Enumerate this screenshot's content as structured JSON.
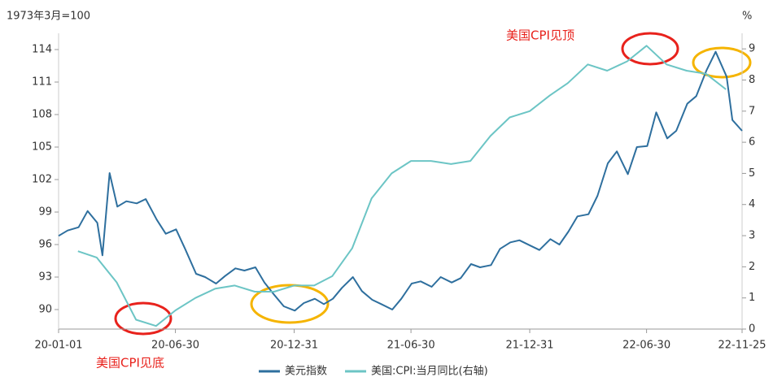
{
  "chart_data": {
    "type": "line",
    "y_axis_label": "1973年3月=100",
    "y2_axis_label": "%",
    "annotations": [
      "美国CPI见顶",
      "美国CPI见底"
    ],
    "xlim": [
      "20-01-01",
      "22-11-25"
    ],
    "xticks": [
      "20-01-01",
      "20-06-30",
      "20-12-31",
      "21-06-30",
      "21-12-31",
      "22-06-30",
      "22-11-25"
    ],
    "ylim": [
      88.2,
      115.5
    ],
    "yticks": [
      90,
      93,
      96,
      99,
      102,
      105,
      108,
      111,
      114
    ],
    "y2lim": [
      0,
      9.5
    ],
    "y2ticks": [
      0,
      1,
      2,
      3,
      4,
      5,
      6,
      7,
      8,
      9
    ],
    "grid": false,
    "legend": "bottom",
    "series": [
      {
        "name": "美元指数",
        "color": "#2e6f9e",
        "x": [
          "20-01-01",
          "20-01-15",
          "20-02-01",
          "20-02-15",
          "20-03-01",
          "20-03-09",
          "20-03-20",
          "20-04-01",
          "20-04-15",
          "20-05-01",
          "20-05-15",
          "20-06-01",
          "20-06-15",
          "20-07-01",
          "20-07-15",
          "20-08-01",
          "20-08-15",
          "20-09-01",
          "20-09-15",
          "20-10-01",
          "20-10-15",
          "20-11-01",
          "20-11-15",
          "20-12-01",
          "20-12-15",
          "21-01-01",
          "21-01-15",
          "21-02-01",
          "21-02-15",
          "21-03-01",
          "21-03-15",
          "21-04-01",
          "21-04-15",
          "21-05-01",
          "21-05-15",
          "21-06-01",
          "21-06-15",
          "21-07-01",
          "21-07-15",
          "21-08-01",
          "21-08-15",
          "21-09-01",
          "21-09-15",
          "21-10-01",
          "21-10-15",
          "21-11-01",
          "21-11-15",
          "21-12-01",
          "21-12-15",
          "22-01-01",
          "22-01-15",
          "22-02-01",
          "22-02-15",
          "22-03-01",
          "22-03-15",
          "22-04-01",
          "22-04-15",
          "22-05-01",
          "22-05-15",
          "22-06-01",
          "22-06-15",
          "22-07-01",
          "22-07-15",
          "22-08-01",
          "22-08-15",
          "22-09-01",
          "22-09-15",
          "22-10-01",
          "22-10-15",
          "22-11-01",
          "22-11-10",
          "22-11-25"
        ],
        "values": [
          96.8,
          97.3,
          97.6,
          99.1,
          98.0,
          95.0,
          102.6,
          99.5,
          100.0,
          99.8,
          100.2,
          98.3,
          97.0,
          97.4,
          95.6,
          93.3,
          93.0,
          92.4,
          93.1,
          93.8,
          93.6,
          93.9,
          92.5,
          91.3,
          90.3,
          89.9,
          90.6,
          91.0,
          90.5,
          91.0,
          92.0,
          93.0,
          91.7,
          90.9,
          90.5,
          90.0,
          91.0,
          92.4,
          92.6,
          92.1,
          93.0,
          92.5,
          92.9,
          94.2,
          93.9,
          94.1,
          95.6,
          96.2,
          96.4,
          95.9,
          95.5,
          96.5,
          96.0,
          97.2,
          98.6,
          98.8,
          100.5,
          103.5,
          104.6,
          102.5,
          105.0,
          105.1,
          108.2,
          105.8,
          106.5,
          109.0,
          109.7,
          112.1,
          113.8,
          111.5,
          107.5,
          106.5
        ]
      },
      {
        "name": "美国:CPI:当月同比(右轴)",
        "color": "#6cc5c5",
        "axis": "y2",
        "x": [
          "20-01-31",
          "20-02-29",
          "20-03-31",
          "20-04-30",
          "20-05-31",
          "20-06-30",
          "20-07-31",
          "20-08-31",
          "20-09-30",
          "20-10-31",
          "20-11-30",
          "20-12-31",
          "21-01-31",
          "21-02-28",
          "21-03-31",
          "21-04-30",
          "21-05-31",
          "21-06-30",
          "21-07-31",
          "21-08-31",
          "21-09-30",
          "21-10-31",
          "21-11-30",
          "21-12-31",
          "22-01-31",
          "22-02-28",
          "22-03-31",
          "22-04-30",
          "22-05-31",
          "22-06-30",
          "22-07-31",
          "22-08-31",
          "22-09-30",
          "22-10-31"
        ],
        "values": [
          2.5,
          2.3,
          1.5,
          0.3,
          0.1,
          0.6,
          1.0,
          1.3,
          1.4,
          1.2,
          1.2,
          1.4,
          1.4,
          1.7,
          2.6,
          4.2,
          5.0,
          5.4,
          5.4,
          5.3,
          5.4,
          6.2,
          6.8,
          7.0,
          7.5,
          7.9,
          8.5,
          8.3,
          8.6,
          9.1,
          8.5,
          8.3,
          8.2,
          7.7
        ]
      }
    ]
  }
}
